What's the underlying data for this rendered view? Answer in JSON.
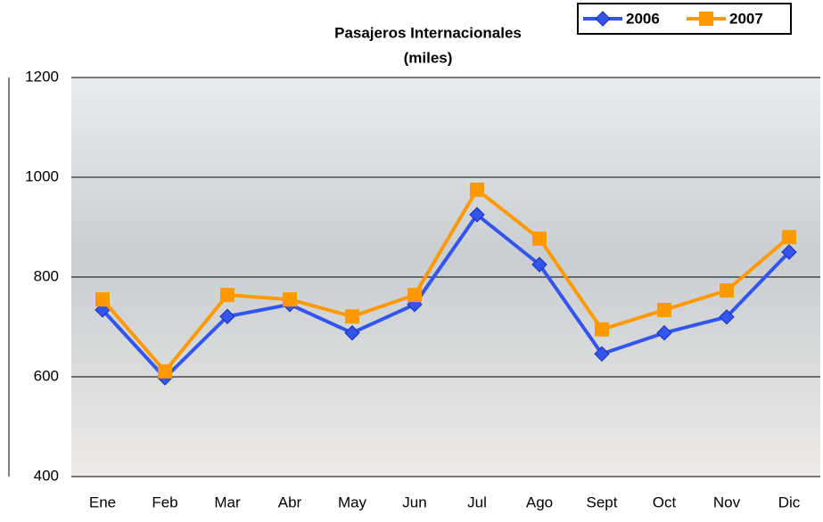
{
  "chart_data": {
    "type": "line",
    "title": "Pasajeros Internacionales",
    "subtitle": "(miles)",
    "categories": [
      "Ene",
      "Feb",
      "Mar",
      "Abr",
      "May",
      "Jun",
      "Jul",
      "Ago",
      "Sept",
      "Oct",
      "Nov",
      "Dic"
    ],
    "series": [
      {
        "name": "2006",
        "color": "#3355ee",
        "marker": "diamond",
        "values": [
          734,
          598,
          721,
          745,
          688,
          745,
          925,
          825,
          646,
          688,
          720,
          850
        ]
      },
      {
        "name": "2007",
        "color": "#ff9900",
        "marker": "square",
        "values": [
          755,
          611,
          764,
          755,
          721,
          764,
          975,
          877,
          695,
          734,
          773,
          880
        ]
      }
    ],
    "ylim": [
      400,
      1200
    ],
    "yticks": [
      400,
      600,
      800,
      1000,
      1200
    ],
    "grid": true,
    "legend": "top-right"
  }
}
